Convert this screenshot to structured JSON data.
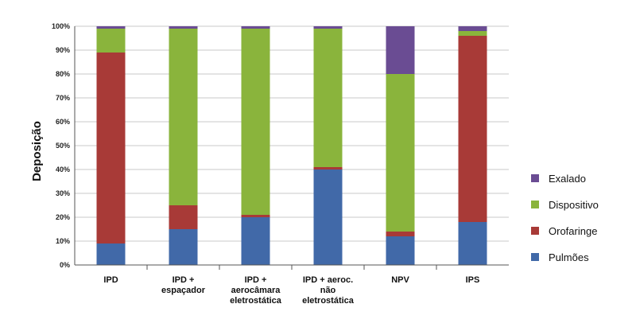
{
  "chart_data": {
    "type": "bar",
    "stacked": true,
    "categories": [
      [
        "IPD"
      ],
      [
        "IPD +",
        "espaçador"
      ],
      [
        "IPD +",
        "aerocâmara",
        "eletrostática"
      ],
      [
        "IPD + aeroc.",
        "não",
        "eletrostática"
      ],
      [
        "NPV"
      ],
      [
        "IPS"
      ]
    ],
    "series": [
      {
        "name": "Pulmões",
        "color": "#4169a8",
        "values": [
          9,
          15,
          20,
          40,
          12,
          18
        ]
      },
      {
        "name": "Orofaringe",
        "color": "#a83a37",
        "values": [
          80,
          10,
          1,
          1,
          2,
          78
        ]
      },
      {
        "name": "Dispositivo",
        "color": "#8ab43c",
        "values": [
          10,
          74,
          78,
          58,
          66,
          2
        ]
      },
      {
        "name": "Exalado",
        "color": "#6a4c93",
        "values": [
          1,
          1,
          1,
          1,
          20,
          2
        ]
      }
    ],
    "legend_order": [
      "Exalado",
      "Dispositivo",
      "Orofaringe",
      "Pulmões"
    ],
    "legend_position": "right",
    "ylabel": "Deposição",
    "ylim": [
      0,
      100
    ],
    "yticks": [
      "0%",
      "10%",
      "20%",
      "30%",
      "40%",
      "50%",
      "60%",
      "70%",
      "80%",
      "90%",
      "100%"
    ],
    "grid": true
  }
}
